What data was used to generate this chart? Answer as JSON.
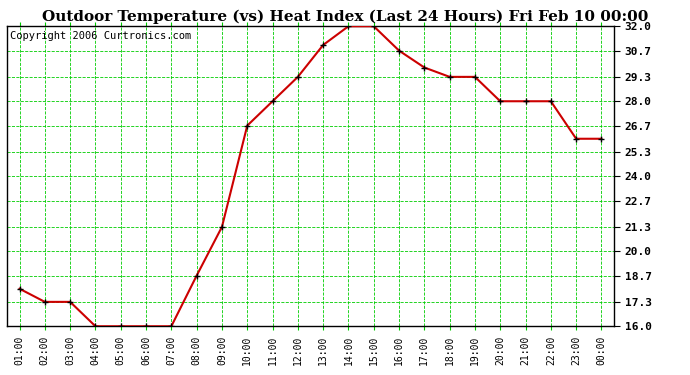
{
  "title": "Outdoor Temperature (vs) Heat Index (Last 24 Hours) Fri Feb 10 00:00",
  "copyright": "Copyright 2006 Curtronics.com",
  "x_labels": [
    "01:00",
    "02:00",
    "03:00",
    "04:00",
    "05:00",
    "06:00",
    "07:00",
    "08:00",
    "09:00",
    "10:00",
    "11:00",
    "12:00",
    "13:00",
    "14:00",
    "15:00",
    "16:00",
    "17:00",
    "18:00",
    "19:00",
    "20:00",
    "21:00",
    "22:00",
    "23:00",
    "00:00"
  ],
  "y_values": [
    18.0,
    17.3,
    17.3,
    16.0,
    16.0,
    16.0,
    16.0,
    18.7,
    21.3,
    26.7,
    28.0,
    29.3,
    31.0,
    32.0,
    32.0,
    30.7,
    29.8,
    29.3,
    29.3,
    28.0,
    28.0,
    28.0,
    26.0,
    26.0
  ],
  "y_min": 16.0,
  "y_max": 32.0,
  "y_ticks": [
    16.0,
    17.3,
    18.7,
    20.0,
    21.3,
    22.7,
    24.0,
    25.3,
    26.7,
    28.0,
    29.3,
    30.7,
    32.0
  ],
  "line_color": "#cc0000",
  "marker_color": "#000000",
  "bg_color": "#ffffff",
  "plot_bg_color": "#ffffff",
  "grid_color": "#00cc00",
  "title_fontsize": 11,
  "copyright_fontsize": 7.5
}
